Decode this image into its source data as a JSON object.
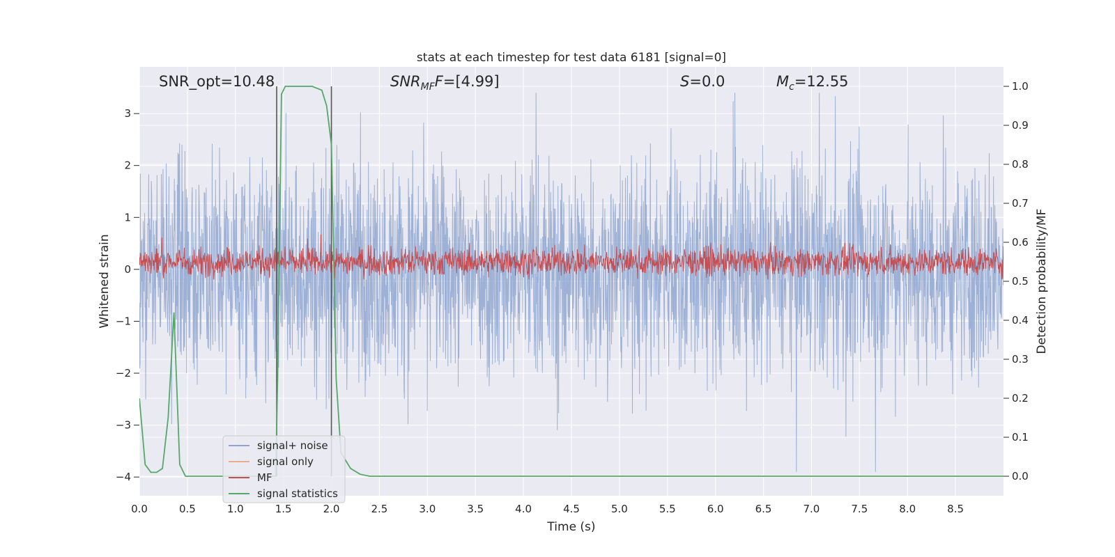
{
  "chart_data": {
    "type": "line",
    "title": "stats at each timestep for test data 6181 [signal=0]",
    "xlabel": "Time (s)",
    "ylabel_left": "Whitened strain",
    "ylabel_right": "Detection probability/MF",
    "xlim": [
      0.0,
      9.0
    ],
    "ylim_left": [
      -4.36,
      3.9
    ],
    "ylim_right": [
      -0.05,
      1.05
    ],
    "x_ticks": [
      "0.0",
      "0.5",
      "1.0",
      "1.5",
      "2.0",
      "2.5",
      "3.0",
      "3.5",
      "4.0",
      "4.5",
      "5.0",
      "5.5",
      "6.0",
      "6.5",
      "7.0",
      "7.5",
      "8.0",
      "8.5"
    ],
    "y_left_ticks": [
      "3",
      "2",
      "1",
      "0",
      "−1",
      "−2",
      "−3",
      "−4"
    ],
    "y_right_ticks": [
      "1.0",
      "0.9",
      "0.8",
      "0.7",
      "0.6",
      "0.5",
      "0.4",
      "0.3",
      "0.2",
      "0.1",
      "0.0"
    ],
    "grid": true,
    "legend_position": "lower-left",
    "annotations": {
      "snr_opt": "SNR_opt=10.48",
      "snr_mf_main": "SNR",
      "snr_mf_sub": "MF",
      "snr_mf_rest": "=[4.99]",
      "s_main": "S",
      "s_rest": "=0.0",
      "mc_main": "M",
      "mc_sub": "c",
      "mc_rest": "=12.55"
    },
    "window_markers_x": [
      1.43,
      2.0
    ],
    "series": [
      {
        "name": "signal+ noise",
        "axis": "left",
        "color": "#8fa6d0",
        "envelope": {
          "typical_amplitude": 1.7,
          "max_peak": 3.4,
          "min_trough": -3.9
        }
      },
      {
        "name": "signal only",
        "axis": "left",
        "color": "#eeaa8a",
        "values": []
      },
      {
        "name": "MF",
        "axis": "right",
        "color": "#c44e52",
        "envelope": {
          "baseline": 0.55,
          "typical_amplitude": 0.03,
          "max_peak": 0.62
        }
      },
      {
        "name": "signal statistics",
        "axis": "right",
        "color": "#55a868",
        "x": [
          0.0,
          0.06,
          0.12,
          0.18,
          0.24,
          0.3,
          0.36,
          0.42,
          0.48,
          0.54,
          0.6,
          1.2,
          1.42,
          1.44,
          1.48,
          1.52,
          1.6,
          1.7,
          1.8,
          1.9,
          1.95,
          2.0,
          2.05,
          2.1,
          2.2,
          2.3,
          2.4,
          2.5,
          9.0
        ],
        "y": [
          0.2,
          0.03,
          0.01,
          0.01,
          0.02,
          0.15,
          0.42,
          0.03,
          0.0,
          0.0,
          0.0,
          0.0,
          0.0,
          0.25,
          0.98,
          1.0,
          1.0,
          1.0,
          1.0,
          0.99,
          0.95,
          0.85,
          0.25,
          0.06,
          0.02,
          0.005,
          0.0,
          0.0,
          0.0
        ]
      }
    ]
  }
}
